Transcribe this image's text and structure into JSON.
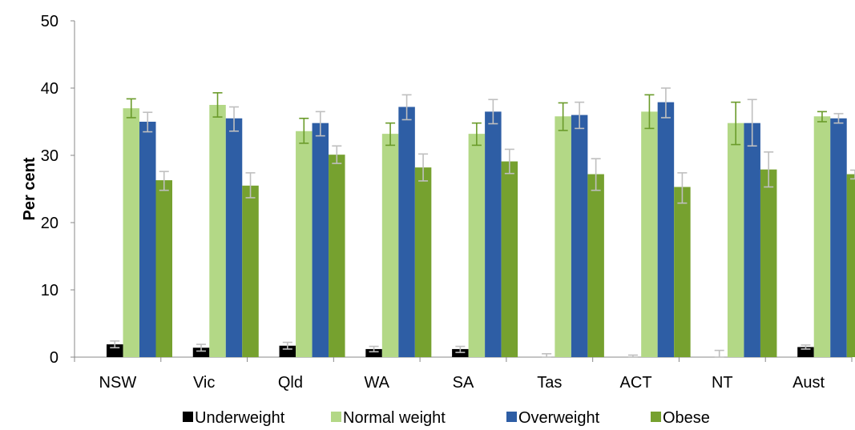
{
  "chart_data": {
    "type": "bar",
    "title": "",
    "xlabel": "",
    "ylabel": "Per cent",
    "ylim": [
      0,
      50
    ],
    "yticks": [
      0,
      10,
      20,
      30,
      40,
      50
    ],
    "grid": false,
    "legend_position": "bottom",
    "categories": [
      "NSW",
      "Vic",
      "Qld",
      "WA",
      "SA",
      "Tas",
      "ACT",
      "NT",
      "Aust"
    ],
    "series": [
      {
        "name": "Underweight",
        "color": "#000000",
        "error_color": "#bfbfbf",
        "values": [
          1.9,
          1.4,
          1.7,
          1.2,
          1.2,
          0,
          0,
          0,
          1.5
        ],
        "lower": [
          1.4,
          0.9,
          1.2,
          0.8,
          0.7,
          0,
          0,
          0,
          1.2
        ],
        "upper": [
          2.4,
          1.9,
          2.2,
          1.6,
          1.6,
          0.5,
          0.3,
          1.0,
          1.8
        ]
      },
      {
        "name": "Normal weight",
        "color": "#b3d886",
        "error_color": "#6a9b2a",
        "values": [
          37.0,
          37.5,
          33.6,
          33.2,
          33.2,
          35.8,
          36.5,
          34.8,
          35.8
        ],
        "lower": [
          35.6,
          35.7,
          31.8,
          31.5,
          31.5,
          33.7,
          34.0,
          31.6,
          35.0
        ],
        "upper": [
          38.4,
          39.3,
          35.5,
          34.8,
          34.8,
          37.8,
          39.0,
          37.9,
          36.5
        ]
      },
      {
        "name": "Overweight",
        "color": "#2e5ea5",
        "error_color": "#bfbfbf",
        "values": [
          35.0,
          35.5,
          34.8,
          37.2,
          36.5,
          36.0,
          37.9,
          34.8,
          35.5
        ],
        "lower": [
          33.5,
          33.6,
          32.9,
          35.3,
          34.7,
          34.0,
          35.6,
          31.4,
          34.8
        ],
        "upper": [
          36.4,
          37.2,
          36.5,
          39.0,
          38.3,
          37.9,
          40.0,
          38.3,
          36.2
        ]
      },
      {
        "name": "Obese",
        "color": "#76a12f",
        "error_color": "#bfbfbf",
        "values": [
          26.3,
          25.5,
          30.1,
          28.2,
          29.1,
          27.2,
          25.3,
          27.9,
          27.2
        ],
        "lower": [
          24.8,
          23.7,
          28.8,
          26.2,
          27.3,
          24.8,
          22.9,
          25.3,
          26.5
        ],
        "upper": [
          27.6,
          27.4,
          31.4,
          30.2,
          30.9,
          29.5,
          27.4,
          30.5,
          27.8
        ]
      }
    ]
  }
}
